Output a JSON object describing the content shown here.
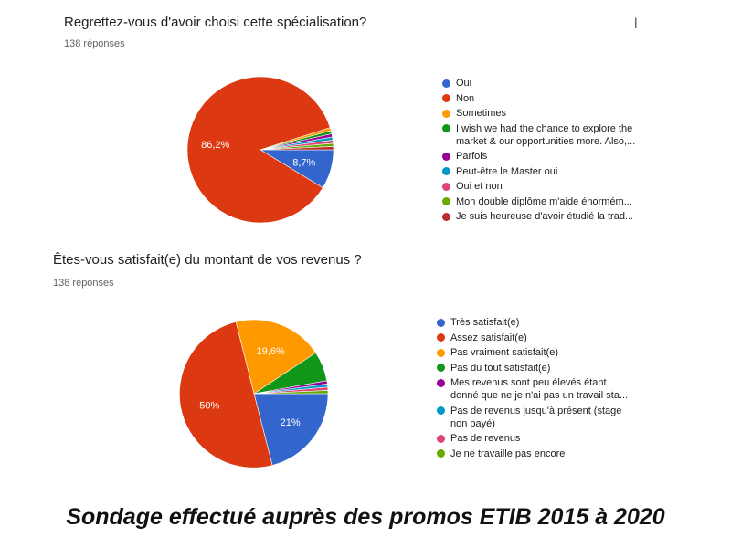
{
  "stray_glyph": "l",
  "caption": "Sondage effectué auprès des promos ETIB 2015 à 2020",
  "chart_data": [
    {
      "type": "pie",
      "title": "Regrettez-vous d'avoir choisi cette spécialisation?",
      "subtitle": "138 réponses",
      "legend_position": "right",
      "slices": [
        {
          "label": "Oui",
          "value": 8.7,
          "color": "#3366cc",
          "text": "8,7%"
        },
        {
          "label": "Non",
          "value": 86.2,
          "color": "#dc3912",
          "text": "86,2%"
        },
        {
          "label": "Sometimes",
          "value": 0.7,
          "color": "#ff9900",
          "text": ""
        },
        {
          "label": "I wish we had the chance to explore the\nmarket & our opportunities more. Also,...",
          "value": 0.7,
          "color": "#109618",
          "text": ""
        },
        {
          "label": "Parfois",
          "value": 0.7,
          "color": "#990099",
          "text": ""
        },
        {
          "label": "Peut-être le Master oui",
          "value": 0.7,
          "color": "#0099c6",
          "text": ""
        },
        {
          "label": "Oui et non",
          "value": 0.7,
          "color": "#dd4477",
          "text": ""
        },
        {
          "label": "Mon double diplôme m'aide énormém...",
          "value": 0.7,
          "color": "#66aa00",
          "text": ""
        },
        {
          "label": "Je suis heureuse d'avoir étudié la trad...",
          "value": 0.7,
          "color": "#b82e2e",
          "text": ""
        }
      ]
    },
    {
      "type": "pie",
      "title": "Êtes-vous satisfait(e) du montant de vos revenus ?",
      "subtitle": "138 réponses",
      "legend_position": "right",
      "slices": [
        {
          "label": "Très satisfait(e)",
          "value": 21,
          "color": "#3366cc",
          "text": "21%"
        },
        {
          "label": "Assez satisfait(e)",
          "value": 50,
          "color": "#dc3912",
          "text": "50%"
        },
        {
          "label": "Pas vraiment satisfait(e)",
          "value": 19.6,
          "color": "#ff9900",
          "text": "19,6%"
        },
        {
          "label": "Pas du tout satisfait(e)",
          "value": 6.5,
          "color": "#109618",
          "text": ""
        },
        {
          "label": "Mes revenus sont peu élevés étant\ndonné que ne je n'ai pas un travail sta...",
          "value": 0.7,
          "color": "#990099",
          "text": ""
        },
        {
          "label": "Pas de revenus jusqu'à présent (stage\nnon payé)",
          "value": 0.7,
          "color": "#0099c6",
          "text": ""
        },
        {
          "label": "Pas de revenus",
          "value": 0.7,
          "color": "#dd4477",
          "text": ""
        },
        {
          "label": "Je ne travaille pas encore",
          "value": 0.7,
          "color": "#66aa00",
          "text": ""
        }
      ]
    }
  ]
}
